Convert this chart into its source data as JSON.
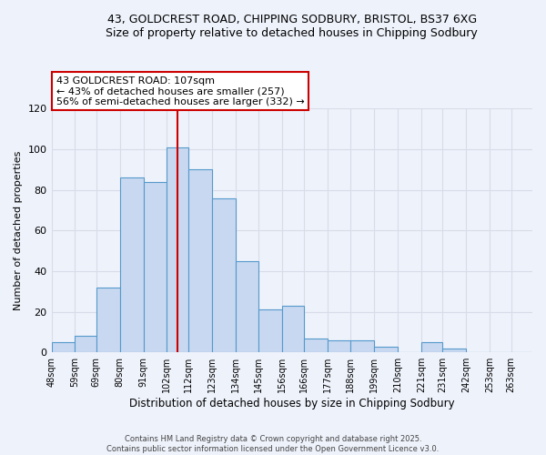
{
  "title_line1": "43, GOLDCREST ROAD, CHIPPING SODBURY, BRISTOL, BS37 6XG",
  "title_line2": "Size of property relative to detached houses in Chipping Sodbury",
  "xlabel": "Distribution of detached houses by size in Chipping Sodbury",
  "ylabel": "Number of detached properties",
  "bin_labels": [
    "48sqm",
    "59sqm",
    "69sqm",
    "80sqm",
    "91sqm",
    "102sqm",
    "112sqm",
    "123sqm",
    "134sqm",
    "145sqm",
    "156sqm",
    "166sqm",
    "177sqm",
    "188sqm",
    "199sqm",
    "210sqm",
    "221sqm",
    "231sqm",
    "242sqm",
    "253sqm",
    "263sqm"
  ],
  "bin_edges": [
    48,
    59,
    69,
    80,
    91,
    102,
    112,
    123,
    134,
    145,
    156,
    166,
    177,
    188,
    199,
    210,
    221,
    231,
    242,
    253,
    263,
    273
  ],
  "bar_heights": [
    5,
    8,
    32,
    86,
    84,
    101,
    90,
    76,
    45,
    21,
    23,
    7,
    6,
    6,
    3,
    0,
    5,
    2,
    0,
    0,
    0
  ],
  "bar_color": "#c8d8f0",
  "bar_edge_color": "#5599cc",
  "ylim": [
    0,
    120
  ],
  "yticks": [
    0,
    20,
    40,
    60,
    80,
    100,
    120
  ],
  "property_line_x": 107,
  "annotation_title": "43 GOLDCREST ROAD: 107sqm",
  "annotation_line1": "← 43% of detached houses are smaller (257)",
  "annotation_line2": "56% of semi-detached houses are larger (332) →",
  "annotation_box_color": "#ffffff",
  "annotation_box_edge_color": "#cc0000",
  "vline_color": "#cc0000",
  "grid_color": "#d8dce8",
  "footer_line1": "Contains HM Land Registry data © Crown copyright and database right 2025.",
  "footer_line2": "Contains public sector information licensed under the Open Government Licence v3.0.",
  "background_color": "#eef2fb"
}
